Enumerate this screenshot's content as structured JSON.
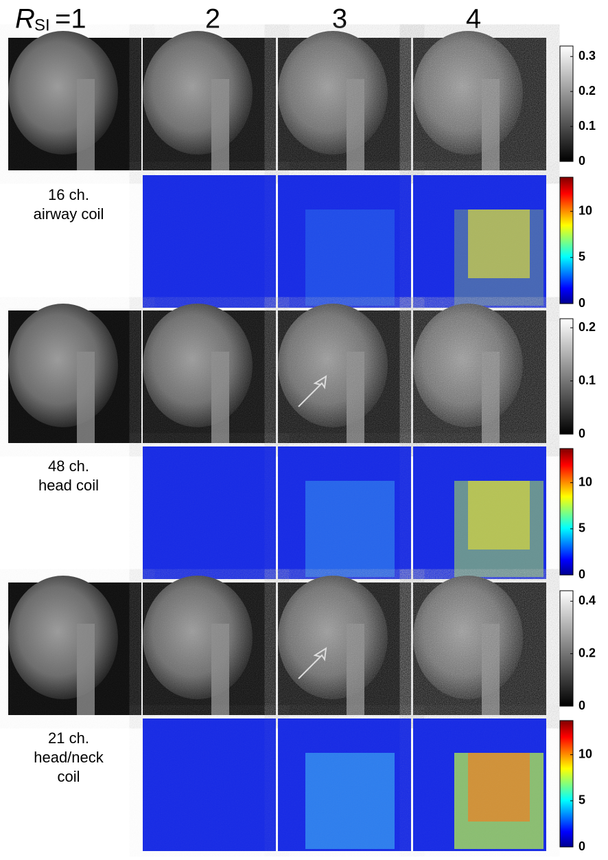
{
  "header": {
    "r_label": "R",
    "r_subscript": "SI",
    "columns": [
      "=1",
      "2",
      "3",
      "4"
    ]
  },
  "groups": [
    {
      "label_lines": [
        "16 ch.",
        "airway coil"
      ],
      "intensity_colorbar": {
        "lim": [
          0,
          0.33
        ],
        "ticks": [
          0,
          0.1,
          0.2,
          0.3
        ]
      },
      "gfactor_colorbar": {
        "lim": [
          0,
          13.7
        ],
        "ticks": [
          0,
          5,
          10
        ]
      }
    },
    {
      "label_lines": [
        "48 ch.",
        "head coil"
      ],
      "intensity_colorbar": {
        "lim": [
          0,
          0.217
        ],
        "ticks": [
          0,
          0.1,
          0.2
        ]
      },
      "gfactor_colorbar": {
        "lim": [
          0,
          13.7
        ],
        "ticks": [
          0,
          5,
          10
        ]
      }
    },
    {
      "label_lines": [
        "21 ch.",
        "head/neck",
        "coil"
      ],
      "intensity_colorbar": {
        "lim": [
          0,
          0.44
        ],
        "ticks": [
          0,
          0.2,
          0.4
        ]
      },
      "gfactor_colorbar": {
        "lim": [
          0,
          13.7
        ],
        "ticks": [
          0,
          5,
          10
        ]
      }
    }
  ]
}
